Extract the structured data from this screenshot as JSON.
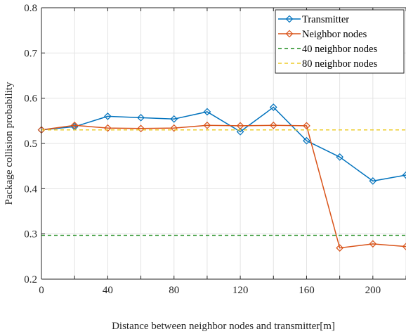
{
  "chart_data": {
    "type": "line",
    "title": "",
    "xlabel": "Distance between neighbor nodes and transmitter[m]",
    "ylabel": "Package collision probability",
    "xlim": [
      0,
      220
    ],
    "ylim": [
      0.2,
      0.8
    ],
    "xticks": [
      0,
      40,
      80,
      120,
      160,
      200
    ],
    "xtick_labels": [
      "0",
      "40",
      "80",
      "120",
      "160",
      "200"
    ],
    "yticks": [
      0.2,
      0.3,
      0.4,
      0.5,
      0.6,
      0.7,
      0.8
    ],
    "ytick_labels": [
      "0.2",
      "0.3",
      "0.4",
      "0.5",
      "0.6",
      "0.7",
      "0.8"
    ],
    "grid_x": [
      0,
      20,
      40,
      60,
      80,
      100,
      120,
      140,
      160,
      180,
      200,
      220
    ],
    "grid": true,
    "legend_position": "top-right",
    "x": [
      0,
      20,
      40,
      60,
      80,
      100,
      120,
      140,
      160,
      180,
      200,
      220
    ],
    "series": [
      {
        "name": "Transmitter",
        "color": "#0072BD",
        "style": "solid",
        "marker": "diamond",
        "values": [
          0.53,
          0.537,
          0.56,
          0.557,
          0.554,
          0.57,
          0.526,
          0.58,
          0.506,
          0.47,
          0.417,
          0.43
        ]
      },
      {
        "name": "Neighbor nodes",
        "color": "#D95319",
        "style": "solid",
        "marker": "diamond",
        "values": [
          0.53,
          0.54,
          0.534,
          0.533,
          0.534,
          0.54,
          0.539,
          0.54,
          0.539,
          0.269,
          0.278,
          0.272
        ]
      },
      {
        "name": "40 neighbor nodes",
        "color": "#1E8C1E",
        "style": "dashed",
        "marker": "none",
        "values": [
          0.297,
          0.297,
          0.297,
          0.297,
          0.297,
          0.297,
          0.297,
          0.297,
          0.297,
          0.297,
          0.297,
          0.297
        ]
      },
      {
        "name": "80 neighbor nodes",
        "color": "#EDCC28",
        "style": "dashed",
        "marker": "none",
        "values": [
          0.53,
          0.53,
          0.53,
          0.53,
          0.53,
          0.53,
          0.53,
          0.53,
          0.53,
          0.53,
          0.53,
          0.53
        ]
      }
    ]
  }
}
